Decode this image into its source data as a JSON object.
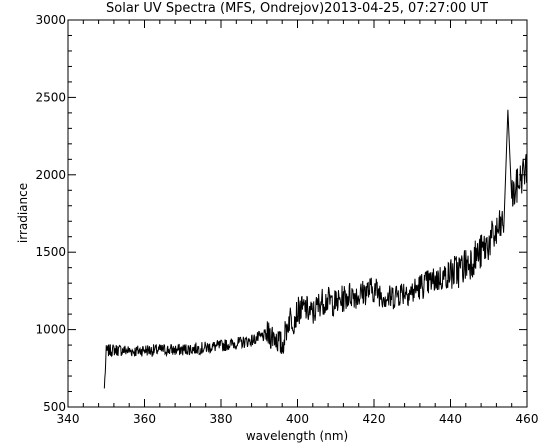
{
  "chart_data": {
    "type": "line",
    "title": "Solar UV Spectra (MFS, Ondrejov)2013-04-25, 07:27:00 UT",
    "xlabel": "wavelength (nm)",
    "ylabel": "irradiance",
    "xlim": [
      340,
      460
    ],
    "ylim": [
      500,
      3000
    ],
    "x_ticks": [
      340,
      360,
      380,
      400,
      420,
      440,
      460
    ],
    "y_ticks": [
      500,
      1000,
      1500,
      2000,
      2500,
      3000
    ],
    "x_tick_labels": [
      "340",
      "360",
      "380",
      "400",
      "420",
      "440",
      "460"
    ],
    "y_tick_labels": [
      "500",
      "1000",
      "1500",
      "2000",
      "2500",
      "3000"
    ],
    "grid": false,
    "series_color": "#000000",
    "series": [
      {
        "x": [
          349.5,
          350,
          352,
          355,
          358,
          360,
          362,
          365,
          368,
          370,
          372,
          375,
          378,
          380,
          382,
          385,
          388,
          390,
          392,
          394,
          396,
          397,
          398,
          399,
          400,
          402,
          404,
          406,
          408,
          410,
          412,
          414,
          416,
          418,
          420,
          422,
          424,
          426,
          428,
          430,
          432,
          434,
          436,
          438,
          440,
          442,
          444,
          446,
          448,
          450,
          452,
          454,
          455,
          456,
          457,
          458,
          459,
          460
        ],
        "y": [
          620,
          860,
          870,
          865,
          860,
          870,
          865,
          870,
          868,
          870,
          875,
          880,
          890,
          895,
          905,
          915,
          930,
          950,
          965,
          960,
          890,
          1000,
          1080,
          1060,
          1120,
          1140,
          1100,
          1180,
          1190,
          1170,
          1200,
          1230,
          1220,
          1250,
          1260,
          1230,
          1200,
          1230,
          1250,
          1240,
          1280,
          1300,
          1320,
          1340,
          1360,
          1380,
          1420,
          1460,
          1500,
          1560,
          1620,
          1700,
          2420,
          1850,
          1900,
          1960,
          2010,
          2050
        ]
      }
    ]
  }
}
